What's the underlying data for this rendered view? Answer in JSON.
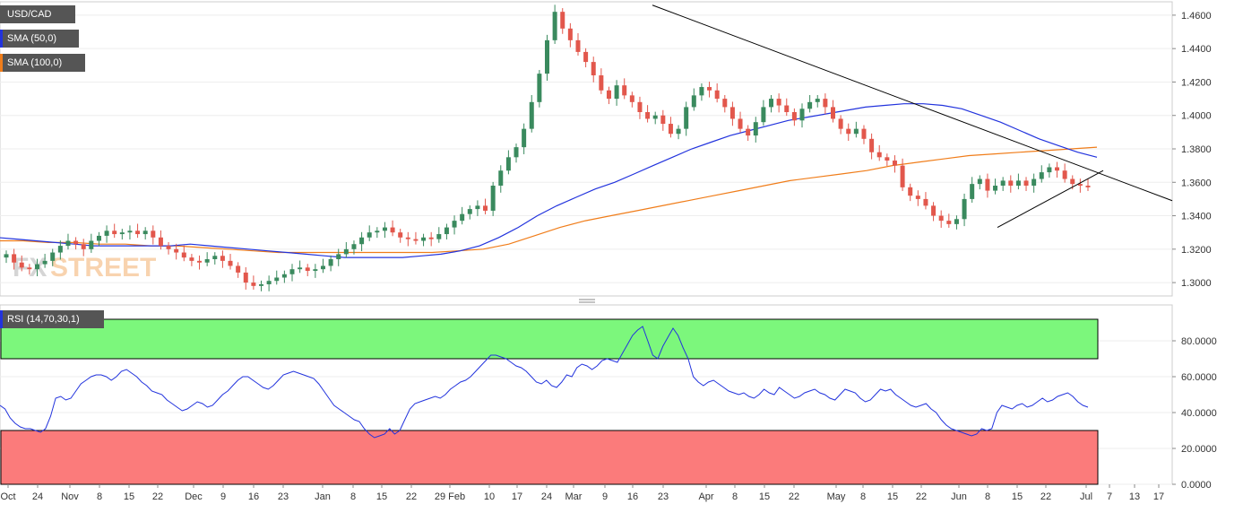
{
  "chart_data": [
    {
      "type": "candlestick",
      "symbol": "USD/CAD",
      "indicators": [
        {
          "name": "SMA (50,0)",
          "color": "#2233dd"
        },
        {
          "name": "SMA (100,0)",
          "color": "#f07d1a"
        }
      ],
      "y_ticks": [
        "1.4600",
        "1.4400",
        "1.4200",
        "1.4000",
        "1.3800",
        "1.3600",
        "1.3400",
        "1.3200",
        "1.3000"
      ],
      "ylim": [
        1.292,
        1.468
      ],
      "x_ticks": [
        "Oct",
        "24",
        "Nov",
        "8",
        "15",
        "22",
        "Dec",
        "9",
        "16",
        "23",
        "Jan",
        "8",
        "15",
        "22",
        "29 Feb",
        "10",
        "17",
        "24",
        "Mar",
        "9",
        "16",
        "23",
        "Apr",
        "8",
        "15",
        "22",
        "May",
        "8",
        "15",
        "22",
        "Jun",
        "8",
        "15",
        "22",
        "Jul",
        "7",
        "13",
        "17"
      ],
      "colors": {
        "up": "#3a8a5e",
        "down": "#e2574c"
      },
      "close_series": [
        1.317,
        1.312,
        1.309,
        1.308,
        1.311,
        1.313,
        1.318,
        1.322,
        1.325,
        1.323,
        1.32,
        1.325,
        1.328,
        1.331,
        1.329,
        1.33,
        1.331,
        1.329,
        1.331,
        1.327,
        1.322,
        1.32,
        1.318,
        1.315,
        1.313,
        1.312,
        1.314,
        1.316,
        1.313,
        1.31,
        1.306,
        1.3,
        1.298,
        1.299,
        1.301,
        1.303,
        1.305,
        1.308,
        1.309,
        1.307,
        1.308,
        1.31,
        1.314,
        1.317,
        1.32,
        1.323,
        1.327,
        1.33,
        1.331,
        1.333,
        1.33,
        1.327,
        1.326,
        1.325,
        1.327,
        1.326,
        1.329,
        1.333,
        1.337,
        1.341,
        1.344,
        1.346,
        1.343,
        1.358,
        1.367,
        1.375,
        1.381,
        1.392,
        1.408,
        1.425,
        1.445,
        1.462,
        1.452,
        1.445,
        1.438,
        1.432,
        1.424,
        1.415,
        1.41,
        1.418,
        1.412,
        1.408,
        1.402,
        1.398,
        1.4,
        1.395,
        1.389,
        1.392,
        1.405,
        1.412,
        1.417,
        1.415,
        1.41,
        1.405,
        1.398,
        1.392,
        1.388,
        1.396,
        1.405,
        1.41,
        1.406,
        1.402,
        1.397,
        1.404,
        1.408,
        1.41,
        1.405,
        1.398,
        1.392,
        1.389,
        1.392,
        1.386,
        1.378,
        1.375,
        1.373,
        1.37,
        1.357,
        1.352,
        1.35,
        1.346,
        1.34,
        1.337,
        1.335,
        1.338,
        1.35,
        1.359,
        1.362,
        1.355,
        1.358,
        1.361,
        1.358,
        1.361,
        1.358,
        1.362,
        1.366,
        1.369,
        1.367,
        1.362,
        1.359,
        1.358,
        1.357
      ],
      "sma50": [
        1.327,
        1.326,
        1.325,
        1.324,
        1.323,
        1.322,
        1.322,
        1.322,
        1.322,
        1.322,
        1.323,
        1.322,
        1.321,
        1.32,
        1.319,
        1.318,
        1.317,
        1.316,
        1.315,
        1.315,
        1.315,
        1.315,
        1.316,
        1.317,
        1.319,
        1.322,
        1.327,
        1.333,
        1.34,
        1.346,
        1.351,
        1.356,
        1.36,
        1.365,
        1.37,
        1.375,
        1.38,
        1.384,
        1.388,
        1.391,
        1.394,
        1.397,
        1.399,
        1.401,
        1.403,
        1.405,
        1.406,
        1.407,
        1.407,
        1.406,
        1.404,
        1.4,
        1.396,
        1.391,
        1.386,
        1.382,
        1.378,
        1.375
      ],
      "sma100": [
        1.325,
        1.325,
        1.324,
        1.324,
        1.323,
        1.323,
        1.322,
        1.322,
        1.321,
        1.32,
        1.319,
        1.318,
        1.318,
        1.318,
        1.318,
        1.318,
        1.318,
        1.318,
        1.319,
        1.32,
        1.323,
        1.328,
        1.333,
        1.337,
        1.34,
        1.343,
        1.346,
        1.349,
        1.352,
        1.355,
        1.358,
        1.361,
        1.363,
        1.365,
        1.367,
        1.37,
        1.372,
        1.374,
        1.376,
        1.377,
        1.378,
        1.379,
        1.38,
        1.381
      ]
    },
    {
      "type": "line",
      "name": "RSI (14,70,30,1)",
      "color": "#2233dd",
      "y_ticks": [
        "80.0000",
        "60.0000",
        "40.0000",
        "20.0000",
        "0.0000"
      ],
      "ylim": [
        0,
        100
      ],
      "overbought": 70,
      "oversold": 30,
      "zone_colors": {
        "overbought": "#7cf77c",
        "oversold": "#fb7b7b"
      },
      "values": [
        44,
        42,
        37,
        34,
        32,
        31,
        31,
        30,
        29,
        31,
        38,
        48,
        49,
        47,
        48,
        52,
        56,
        58,
        60,
        61,
        61,
        60,
        58,
        60,
        63,
        64,
        62,
        60,
        57,
        55,
        52,
        51,
        50,
        47,
        45,
        43,
        41,
        42,
        44,
        46,
        45,
        43,
        44,
        47,
        50,
        52,
        55,
        58,
        60,
        60,
        58,
        56,
        54,
        53,
        55,
        58,
        61,
        62,
        63,
        62,
        61,
        60,
        59,
        56,
        52,
        48,
        44,
        42,
        40,
        38,
        36,
        35,
        31,
        28,
        26,
        27,
        28,
        31,
        28,
        30,
        36,
        42,
        45,
        46,
        47,
        48,
        49,
        48,
        50,
        53,
        55,
        57,
        58,
        60,
        63,
        66,
        69,
        72,
        72,
        71,
        70,
        68,
        66,
        65,
        63,
        60,
        57,
        56,
        58,
        55,
        54,
        57,
        61,
        60,
        65,
        67,
        66,
        64,
        66,
        69,
        70,
        69,
        68,
        73,
        78,
        83,
        86,
        88,
        80,
        72,
        70,
        77,
        82,
        87,
        83,
        76,
        70,
        60,
        57,
        55,
        57,
        58,
        56,
        54,
        52,
        51,
        50,
        51,
        49,
        48,
        50,
        53,
        51,
        50,
        54,
        52,
        50,
        48,
        49,
        51,
        52,
        53,
        51,
        50,
        48,
        47,
        50,
        53,
        52,
        51,
        48,
        46,
        47,
        50,
        53,
        52,
        53,
        50,
        48,
        46,
        44,
        43,
        44,
        45,
        42,
        40,
        36,
        33,
        31,
        30,
        29,
        28,
        27,
        28,
        31,
        30,
        31,
        40,
        44,
        43,
        42,
        44,
        45,
        43,
        44,
        46,
        48,
        46,
        47,
        49,
        50,
        51,
        49,
        46,
        44,
        43
      ]
    }
  ]
}
